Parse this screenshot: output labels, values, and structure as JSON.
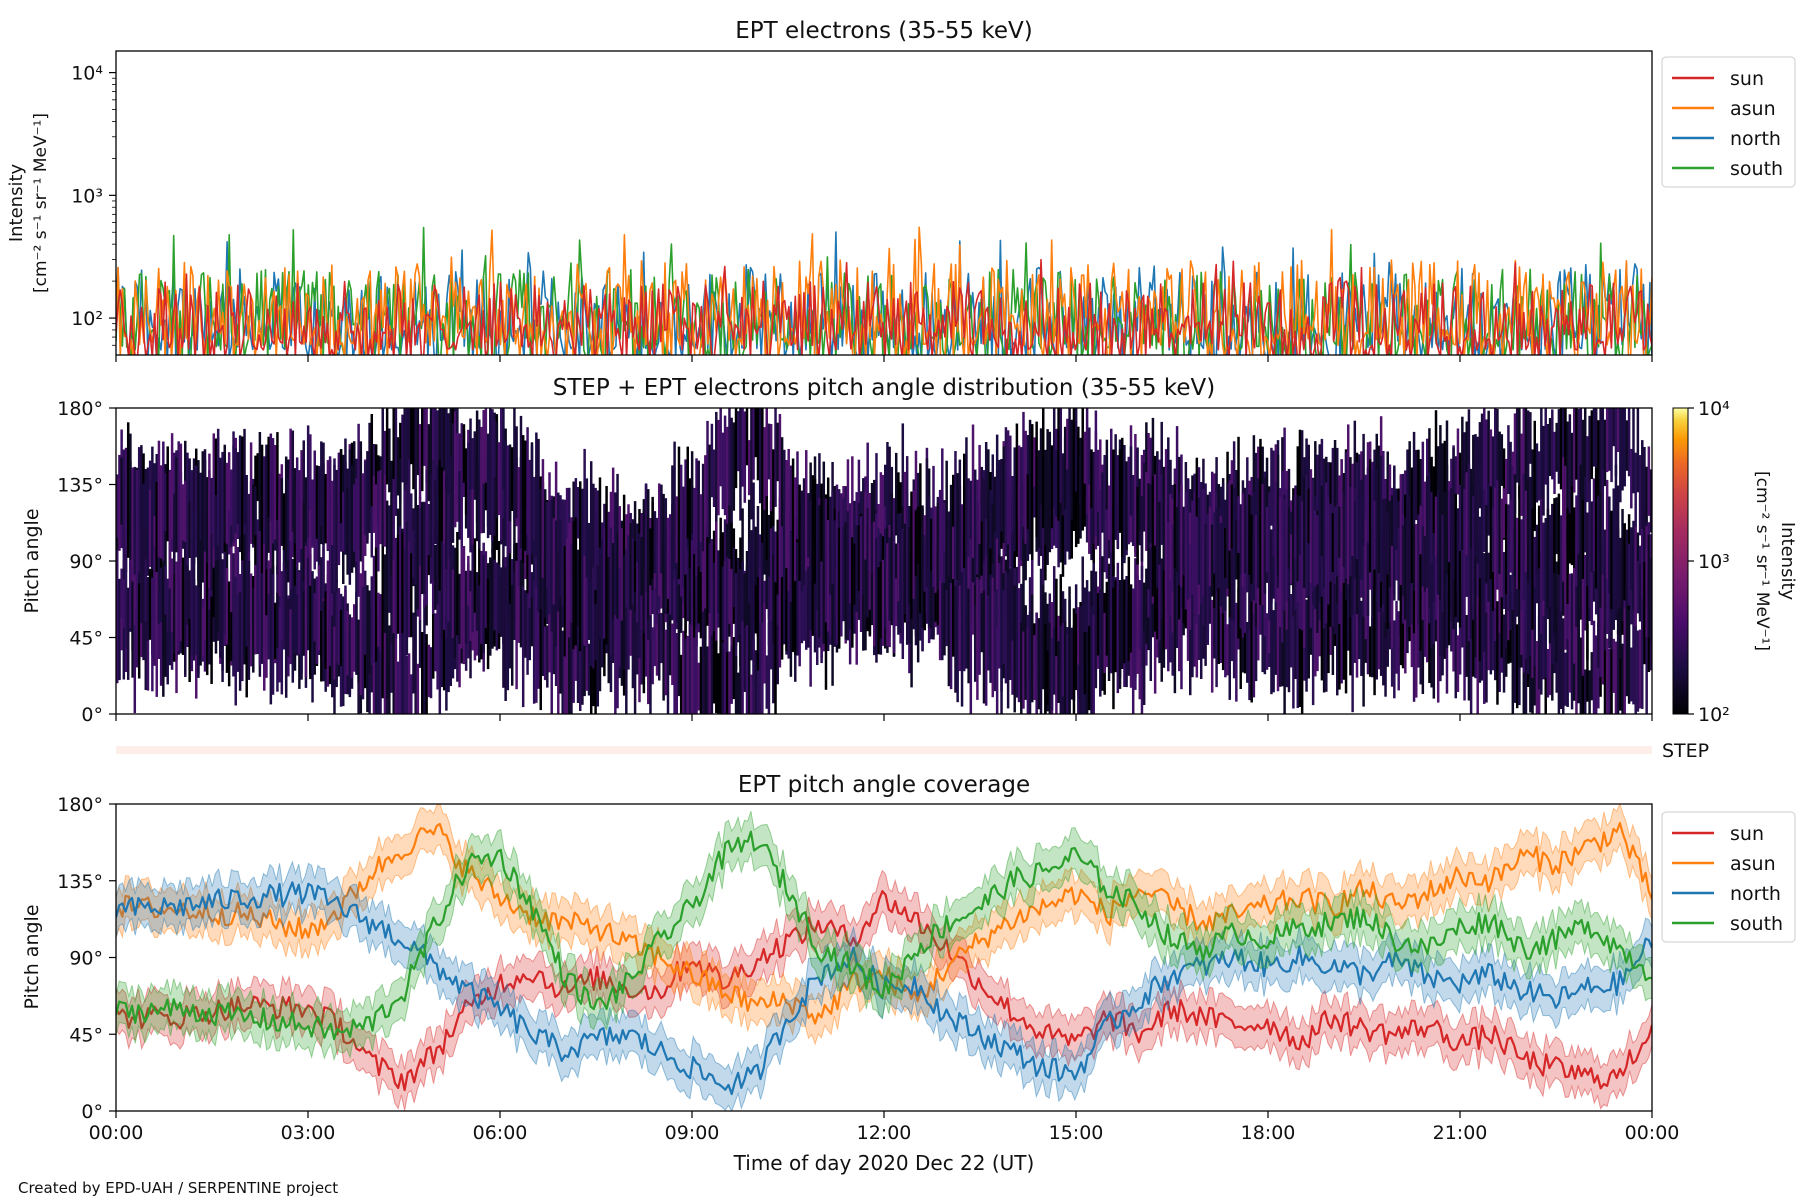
{
  "figure": {
    "xlabel": "Time of day 2020 Dec 22 (UT)",
    "xticks": [
      "00:00",
      "03:00",
      "06:00",
      "09:00",
      "12:00",
      "15:00",
      "18:00",
      "21:00",
      "00:00"
    ],
    "xlim_hours": [
      0,
      24
    ],
    "footer": "Created by EPD-UAH / SERPENTINE project"
  },
  "chart_data": [
    {
      "type": "line",
      "title": "EPT electrons (35-55 keV)",
      "ylabel_line1": "Intensity",
      "ylabel_line2": "[cm⁻² s⁻¹ sr⁻¹ MeV⁻¹]",
      "yscale": "log",
      "ylim": [
        50,
        15000
      ],
      "yticks": [
        {
          "value": 100,
          "label": "10²"
        },
        {
          "value": 1000,
          "label": "10³"
        },
        {
          "value": 10000,
          "label": "10⁴"
        }
      ],
      "legend_position": "right",
      "series": [
        {
          "name": "north",
          "color": "#1f77b4",
          "typical_range": [
            55,
            260
          ],
          "peak": 520
        },
        {
          "name": "south",
          "color": "#2ca02c",
          "typical_range": [
            55,
            250
          ],
          "peak": 560
        },
        {
          "name": "asun",
          "color": "#ff7f0e",
          "typical_range": [
            60,
            300
          ],
          "peak": 600
        },
        {
          "name": "sun",
          "color": "#d62728",
          "typical_range": [
            55,
            200
          ],
          "peak": 300
        }
      ]
    },
    {
      "type": "heatmap",
      "title": "STEP + EPT electrons pitch angle distribution (35-55 keV)",
      "ylabel": "Pitch angle",
      "ylim": [
        0,
        180
      ],
      "yticks": [
        "0°",
        "45°",
        "90°",
        "135°",
        "180°"
      ],
      "colorbar": {
        "label_line1": "Intensity",
        "label_line2": "[cm⁻² s⁻¹ sr⁻¹ MeV⁻¹]",
        "scale": "log",
        "range": [
          100,
          10000
        ],
        "ticks": [
          "10²",
          "10³",
          "10⁴"
        ],
        "colormap": "inferno"
      },
      "description_values": "EPT sectors fill pitch-angle bands around the four telescope directions; intensities near 10² (dark purple)"
    },
    {
      "type": "line",
      "title": "",
      "label_right": "STEP",
      "band_color": "#fdeeea"
    },
    {
      "type": "line",
      "title": "EPT pitch angle coverage",
      "ylabel": "Pitch angle",
      "ylim": [
        0,
        180
      ],
      "yticks": [
        "0°",
        "45°",
        "90°",
        "135°",
        "180°"
      ],
      "legend_position": "right",
      "series": [
        {
          "name": "sun",
          "color": "#d62728",
          "x": [
            0,
            1,
            2,
            3,
            3.5,
            4,
            4.5,
            5,
            5.5,
            6,
            6.5,
            7,
            7.5,
            8,
            8.5,
            9,
            9.5,
            10,
            10.5,
            11,
            11.5,
            12,
            12.5,
            13,
            13.5,
            14,
            14.5,
            15,
            15.5,
            16,
            16.5,
            17,
            17.5,
            18,
            18.5,
            19,
            19.5,
            20,
            20.5,
            21,
            21.5,
            22,
            22.5,
            23,
            23.5,
            24
          ],
          "values": [
            55,
            55,
            62,
            60,
            50,
            28,
            18,
            35,
            60,
            75,
            82,
            70,
            78,
            72,
            70,
            90,
            75,
            88,
            100,
            110,
            100,
            125,
            112,
            95,
            75,
            58,
            45,
            40,
            55,
            45,
            60,
            55,
            50,
            52,
            40,
            55,
            48,
            45,
            50,
            40,
            45,
            30,
            25,
            20,
            20,
            50
          ]
        },
        {
          "name": "asun",
          "color": "#ff7f0e",
          "x": [
            0,
            1,
            2,
            3,
            3.5,
            4,
            4.5,
            5,
            5.5,
            6,
            6.5,
            7,
            7.5,
            8,
            8.5,
            9,
            9.5,
            10,
            10.5,
            11,
            11.5,
            12,
            12.5,
            13,
            13.5,
            14,
            14.5,
            15,
            15.5,
            16,
            16.5,
            17,
            17.5,
            18,
            18.5,
            19,
            19.5,
            20,
            20.5,
            21,
            21.5,
            22,
            22.5,
            23,
            23.5,
            24
          ],
          "values": [
            120,
            118,
            115,
            105,
            118,
            140,
            155,
            165,
            140,
            125,
            115,
            110,
            108,
            98,
            90,
            80,
            70,
            62,
            65,
            55,
            75,
            80,
            65,
            85,
            100,
            112,
            120,
            128,
            115,
            130,
            120,
            110,
            115,
            120,
            125,
            120,
            130,
            120,
            128,
            138,
            135,
            150,
            145,
            155,
            165,
            125
          ]
        },
        {
          "name": "north",
          "color": "#1f77b4",
          "x": [
            0,
            1,
            2,
            3,
            3.5,
            4,
            4.5,
            5,
            5.5,
            6,
            6.5,
            7,
            7.5,
            8,
            8.5,
            9,
            9.5,
            10,
            10.5,
            11,
            11.5,
            12,
            12.5,
            13,
            13.5,
            14,
            14.5,
            15,
            15.5,
            16,
            16.5,
            17,
            17.5,
            18,
            18.5,
            19,
            19.5,
            20,
            20.5,
            21,
            21.5,
            22,
            22.5,
            23,
            23.5,
            24
          ],
          "values": [
            118,
            120,
            125,
            128,
            120,
            110,
            100,
            85,
            70,
            60,
            45,
            35,
            42,
            45,
            35,
            25,
            15,
            20,
            55,
            80,
            90,
            72,
            75,
            55,
            45,
            35,
            25,
            22,
            50,
            65,
            80,
            85,
            90,
            85,
            90,
            85,
            80,
            88,
            78,
            75,
            80,
            70,
            65,
            72,
            75,
            100
          ]
        },
        {
          "name": "south",
          "color": "#2ca02c",
          "x": [
            0,
            1,
            2,
            3,
            3.5,
            4,
            4.5,
            5,
            5.5,
            6,
            6.5,
            7,
            7.5,
            8,
            8.5,
            9,
            9.5,
            10,
            10.5,
            11,
            11.5,
            12,
            12.5,
            13,
            13.5,
            14,
            14.5,
            15,
            15.5,
            16,
            16.5,
            17,
            17.5,
            18,
            18.5,
            19,
            19.5,
            20,
            20.5,
            21,
            21.5,
            22,
            22.5,
            23,
            23.5,
            24
          ],
          "values": [
            58,
            60,
            55,
            50,
            45,
            52,
            70,
            110,
            145,
            150,
            120,
            80,
            60,
            75,
            100,
            120,
            150,
            160,
            130,
            95,
            85,
            70,
            95,
            110,
            120,
            135,
            140,
            150,
            130,
            120,
            100,
            95,
            105,
            100,
            108,
            110,
            115,
            100,
            95,
            108,
            112,
            95,
            100,
            110,
            95,
            80
          ]
        }
      ]
    }
  ]
}
